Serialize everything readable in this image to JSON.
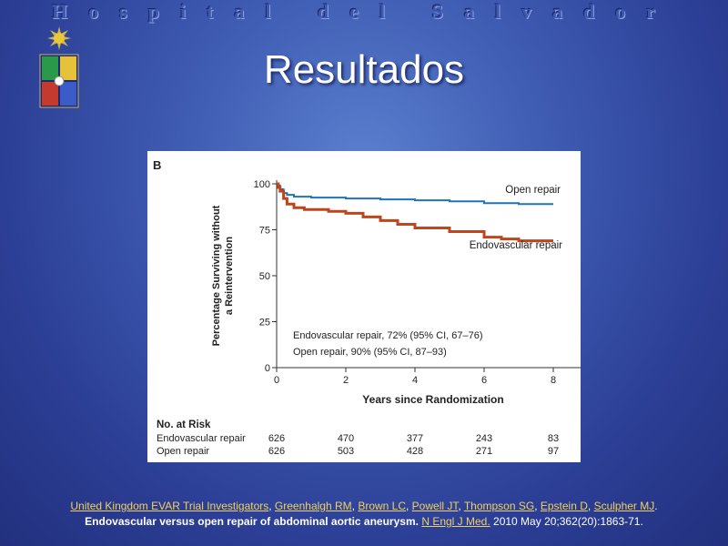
{
  "slide": {
    "header": "Hospital del Salvador",
    "title": "Resultados"
  },
  "chart_data": {
    "type": "line",
    "panel_label": "B",
    "xlabel": "Years since Randomization",
    "ylabel_line1": "Percentage Surviving without",
    "ylabel_line2": "a Reintervention",
    "xlim": [
      0,
      8
    ],
    "ylim": [
      0,
      100
    ],
    "x_ticks": [
      0,
      2,
      4,
      6,
      8
    ],
    "y_ticks": [
      0,
      25,
      50,
      75,
      100
    ],
    "series": [
      {
        "name": "Open repair",
        "color": "#1f74b6",
        "x": [
          0,
          0.05,
          0.1,
          0.2,
          0.3,
          0.5,
          1,
          2,
          3,
          4,
          5,
          6,
          7,
          8
        ],
        "y": [
          100,
          99,
          97,
          95,
          94,
          93,
          92.5,
          92,
          91.5,
          91,
          90.5,
          89.5,
          89,
          89
        ]
      },
      {
        "name": "Endovascular repair",
        "color": "#c0451c",
        "x": [
          0,
          0.05,
          0.1,
          0.2,
          0.3,
          0.5,
          0.8,
          1,
          1.5,
          2,
          2.5,
          3,
          3.5,
          4,
          5,
          6,
          6.5,
          7,
          8
        ],
        "y": [
          100,
          98,
          96,
          92,
          89,
          87,
          86,
          86,
          85,
          84,
          82,
          80,
          78,
          76,
          74,
          71,
          70,
          69,
          69
        ]
      }
    ],
    "annotation_lines": [
      "Endovascular repair, 72% (95% CI, 67–76)",
      "Open repair, 90% (95% CI, 87–93)"
    ],
    "risk_table": {
      "title": "No. at Risk",
      "rows": [
        {
          "label": "Endovascular repair",
          "values": [
            626,
            470,
            377,
            243,
            83
          ]
        },
        {
          "label": "Open repair",
          "values": [
            626,
            503,
            428,
            271,
            97
          ]
        }
      ]
    }
  },
  "reference": {
    "authors": [
      "United Kingdom EVAR Trial Investigators",
      "Greenhalgh RM",
      "Brown LC",
      "Powell JT",
      "Thompson SG",
      "Epstein D",
      "Sculpher MJ"
    ],
    "title": "Endovascular versus open repair of abdominal aortic aneurysm.",
    "journal": "N Engl J Med.",
    "citation": "2010 May 20;362(20):1863-71."
  }
}
